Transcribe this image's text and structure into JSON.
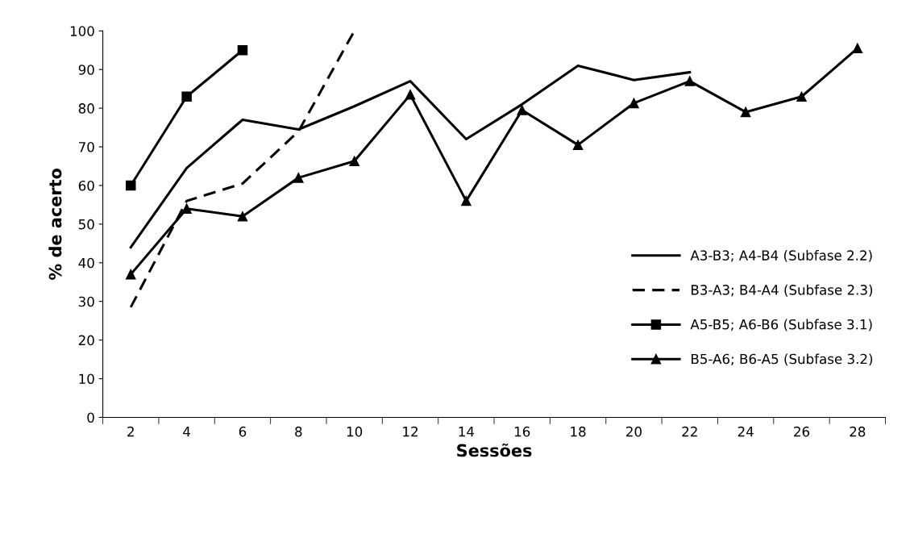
{
  "chart_data": {
    "type": "line",
    "xlabel": "Sessões",
    "ylabel": "% de acerto",
    "categories": [
      "2",
      "4",
      "6",
      "8",
      "10",
      "12",
      "14",
      "16",
      "18",
      "20",
      "22",
      "24",
      "26",
      "28"
    ],
    "ylim": [
      0,
      100
    ],
    "yticks": [
      0,
      10,
      20,
      30,
      40,
      50,
      60,
      70,
      80,
      90,
      100
    ],
    "grid": false,
    "legend": "lower right",
    "series": [
      {
        "name": "A3-B3; A4-B4 (Subfase 2.2)",
        "color": "#000000",
        "line_style": "solid",
        "marker": "none",
        "values": [
          44,
          64.5,
          77,
          74.5,
          80.5,
          87,
          72,
          81,
          91,
          87.3,
          89.3,
          null,
          null,
          null
        ]
      },
      {
        "name": "B3-A3; B4-A4 (Subfase 2.3)",
        "color": "#000000",
        "line_style": "dashed",
        "marker": "none",
        "values": [
          28.5,
          56,
          60.5,
          74,
          100,
          null,
          null,
          null,
          null,
          null,
          null,
          null,
          null,
          null
        ]
      },
      {
        "name": "A5-B5; A6-B6 (Subfase 3.1)",
        "color": "#000000",
        "line_style": "solid",
        "marker": "square",
        "values": [
          60,
          83,
          95,
          null,
          null,
          null,
          null,
          null,
          null,
          null,
          null,
          null,
          null,
          null
        ]
      },
      {
        "name": "B5-A6; B6-A5 (Subfase 3.2)",
        "color": "#000000",
        "line_style": "solid",
        "marker": "triangle",
        "values": [
          37,
          54,
          52,
          62,
          66.3,
          83.5,
          56,
          79.5,
          70.5,
          81.3,
          87,
          79,
          83,
          95.5
        ]
      }
    ]
  }
}
